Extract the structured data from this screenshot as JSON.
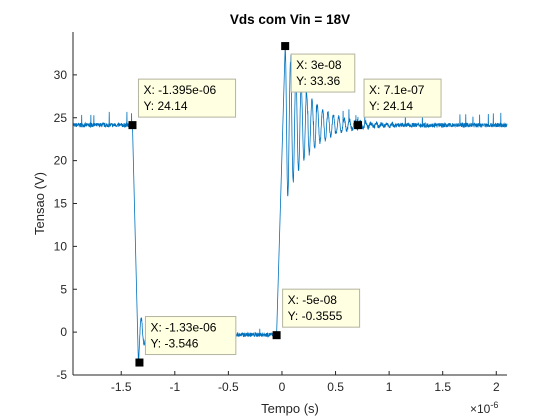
{
  "chart_data": {
    "type": "line",
    "title": "Vds com Vin = 18V",
    "xlabel": "Tempo (s)",
    "ylabel": "Tensao (V)",
    "x_exponent_base": "×10",
    "x_exponent_power": "-6",
    "xlim": [
      -1.95,
      2.1
    ],
    "ylim": [
      -5,
      35
    ],
    "x_ticks": [
      {
        "value": -1.5,
        "label": "-1.5"
      },
      {
        "value": -1.0,
        "label": "-1"
      },
      {
        "value": -0.5,
        "label": "-0.5"
      },
      {
        "value": 0.0,
        "label": "0"
      },
      {
        "value": 0.5,
        "label": "0.5"
      },
      {
        "value": 1.0,
        "label": "1"
      },
      {
        "value": 1.5,
        "label": "1.5"
      },
      {
        "value": 2.0,
        "label": "2"
      }
    ],
    "y_ticks": [
      {
        "value": -5,
        "label": "-5"
      },
      {
        "value": 0,
        "label": "0"
      },
      {
        "value": 5,
        "label": "5"
      },
      {
        "value": 10,
        "label": "10"
      },
      {
        "value": 15,
        "label": "15"
      },
      {
        "value": 20,
        "label": "20"
      },
      {
        "value": 25,
        "label": "25"
      },
      {
        "value": 30,
        "label": "30"
      }
    ],
    "grid": false,
    "series_color": "#0072BD",
    "waveform": {
      "baseline_high": 24.14,
      "baseline_low": -0.3,
      "fall_start": -1.395,
      "fall_end": -1.34,
      "fall_min": -3.546,
      "rise_start": -0.05,
      "rise_peak_time": 0.03,
      "rise_peak": 33.36,
      "ring_frequency_per_us": 20,
      "ring_decay_us": 0.22
    },
    "data_tips": [
      {
        "x": -1.395,
        "y": 24.14,
        "x_label": "X: -1.395e-06",
        "y_label": "Y: 24.14"
      },
      {
        "x": -1.33,
        "y": -3.546,
        "x_label": "X: -1.33e-06",
        "y_label": "Y: -3.546"
      },
      {
        "x": 0.03,
        "y": 33.36,
        "x_label": "X: 3e-08",
        "y_label": "Y: 33.36"
      },
      {
        "x": -0.05,
        "y": -0.3555,
        "x_label": "X: -5e-08",
        "y_label": "Y: -0.3555"
      },
      {
        "x": 0.71,
        "y": 24.14,
        "x_label": "X: 7.1e-07",
        "y_label": "Y: 24.14"
      }
    ]
  }
}
